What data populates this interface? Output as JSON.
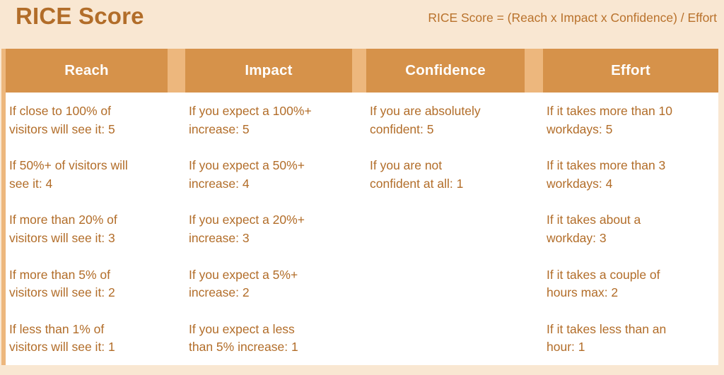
{
  "header": {
    "title": "RICE Score",
    "formula": "RICE Score = (Reach x Impact x Confidence) / Effort"
  },
  "colors": {
    "page_background": "#f9e7d2",
    "header_cell": "#d6924a",
    "divider_light_orange": "#edb77d",
    "cell_background": "#ffffff",
    "text_brown": "#b26d29",
    "header_text": "#ffffff"
  },
  "table": {
    "columns": [
      {
        "header": "Reach",
        "items": [
          "If close to 100% of\nvisitors will see it: 5",
          "If 50%+ of visitors will\nsee it: 4",
          "If more than 20% of\nvisitors will see it: 3",
          "If more than 5% of\nvisitors will see it: 2",
          "If less than 1% of\nvisitors will see it: 1"
        ]
      },
      {
        "header": "Impact",
        "items": [
          "If you expect a 100%+\nincrease: 5",
          "If you expect a 50%+\nincrease: 4",
          "If you expect a 20%+\nincrease: 3",
          "If you expect a 5%+\nincrease: 2",
          "If you expect a less\nthan 5% increase: 1"
        ]
      },
      {
        "header": "Confidence",
        "items": [
          "If you are absolutely\nconfident: 5",
          "If you are not\nconfident at all: 1",
          "",
          "",
          ""
        ]
      },
      {
        "header": "Effort",
        "items": [
          "If it takes more than 10\nworkdays: 5",
          "If it takes more than 3\nworkdays: 4",
          "If it takes about a\nworkday: 3",
          "If it takes a couple of\nhours max: 2",
          "If it takes less than an\nhour: 1"
        ]
      }
    ]
  }
}
